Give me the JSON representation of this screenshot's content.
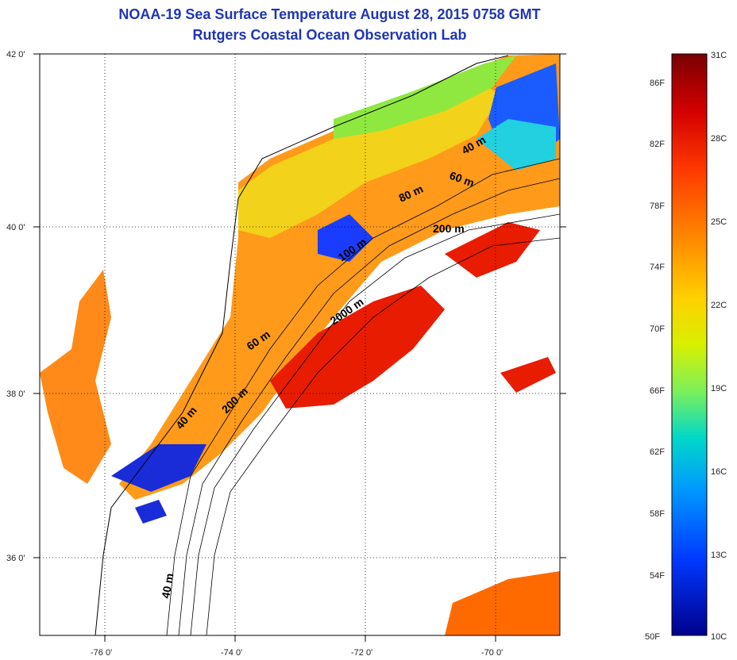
{
  "title": "NOAA-19 Sea Surface Temperature August 28, 2015 0758 GMT",
  "subtitle": "Rutgers Coastal Ocean Observation Lab",
  "latitude_labels": [
    "42 0'",
    "40 0'",
    "38 0'",
    "36 0'"
  ],
  "longitude_labels": [
    "-76 0'",
    "-74 0'",
    "-72 0'",
    "-70 0'"
  ],
  "depth_contour_labels": [
    "40 m",
    "60 m",
    "80 m",
    "100 m",
    "200 m",
    "2000 m",
    "60 m",
    "200 m",
    "40 m",
    "40 m"
  ],
  "colorbar": {
    "fahrenheit_labels": [
      "86F",
      "82F",
      "78F",
      "74F",
      "70F",
      "66F",
      "62F",
      "58F",
      "54F",
      "50F"
    ],
    "celsius_labels": [
      "31C",
      "28C",
      "25C",
      "22C",
      "19C",
      "16C",
      "13C",
      "10C"
    ],
    "colors": [
      "#7a0000",
      "#d40000",
      "#ff3a00",
      "#ff8a00",
      "#ffd000",
      "#d8f000",
      "#7cf05a",
      "#00d8c8",
      "#0098ff",
      "#0038ff",
      "#00008c"
    ]
  }
}
